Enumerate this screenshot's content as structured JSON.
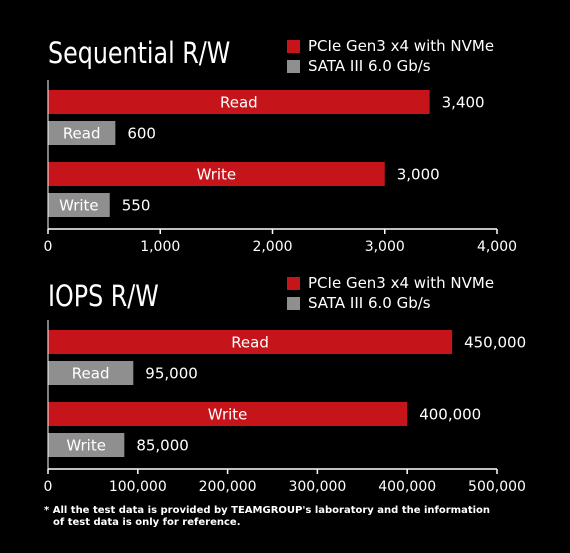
{
  "colors": {
    "pcie": "#c5151b",
    "sata": "#8f8f8f",
    "axis": "#ffffff"
  },
  "chart_data": [
    {
      "type": "bar",
      "orientation": "horizontal",
      "title": "Sequential R/W",
      "categories": [
        "Read",
        "Write"
      ],
      "series": [
        {
          "name": "PCIe Gen3 x4 with NVMe",
          "values": [
            3400,
            3000
          ],
          "labels": [
            "3,400",
            "3,000"
          ]
        },
        {
          "name": "SATA III 6.0 Gb/s",
          "values": [
            600,
            550
          ],
          "labels": [
            "600",
            "550"
          ]
        }
      ],
      "xlim": [
        0,
        4000
      ],
      "ticks": [
        0,
        1000,
        2000,
        3000,
        4000
      ],
      "tick_labels": [
        "0",
        "1,000",
        "2,000",
        "3,000",
        "4,000"
      ],
      "legend": "top-right",
      "grid": false
    },
    {
      "type": "bar",
      "orientation": "horizontal",
      "title": "IOPS R/W",
      "categories": [
        "Read",
        "Write"
      ],
      "series": [
        {
          "name": "PCIe Gen3 x4 with NVMe",
          "values": [
            450000,
            400000
          ],
          "labels": [
            "450,000",
            "400,000"
          ]
        },
        {
          "name": "SATA III 6.0 Gb/s",
          "values": [
            95000,
            85000
          ],
          "labels": [
            "95,000",
            "85,000"
          ]
        }
      ],
      "xlim": [
        0,
        500000
      ],
      "ticks": [
        0,
        100000,
        200000,
        300000,
        400000,
        500000
      ],
      "tick_labels": [
        "0",
        "100,000",
        "200,000",
        "300,000",
        "400,000",
        "500,000"
      ],
      "legend": "top-right",
      "grid": false
    }
  ],
  "footnote": {
    "line1": "* All the test data is provided by TEAMGROUP's laboratory and the information",
    "line2": "of test data is only for reference."
  }
}
